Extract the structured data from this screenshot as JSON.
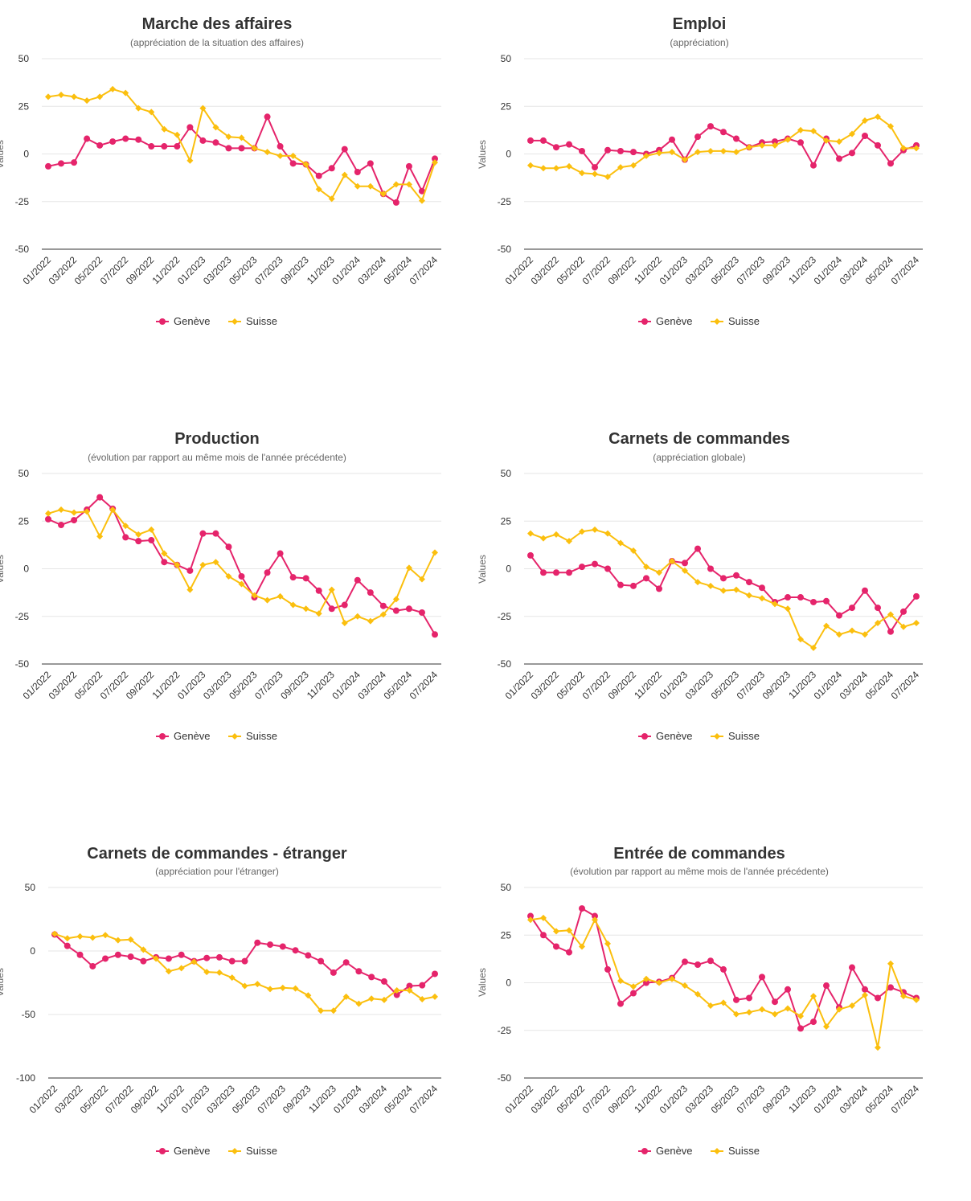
{
  "colors": {
    "geneve": "#E5246B",
    "suisse": "#FBBF0E",
    "grid": "#E6E6E6",
    "axis": "#333333"
  },
  "x_labels": [
    "01/2022",
    "03/2022",
    "05/2022",
    "07/2022",
    "09/2022",
    "11/2022",
    "01/2023",
    "03/2023",
    "05/2023",
    "07/2023",
    "09/2023",
    "11/2023",
    "01/2024",
    "03/2024",
    "05/2024",
    "07/2024"
  ],
  "chart_data": [
    {
      "type": "line",
      "title": "Marche des affaires",
      "subtitle": "(appréciation de la situation des affaires)",
      "ylabel": "Values",
      "ylim": [
        -50,
        50
      ],
      "yticks": [
        -50,
        -25,
        0,
        25,
        50
      ],
      "grid": true,
      "legend": "bottom",
      "series": [
        {
          "name": "Genève",
          "color": "#E5246B",
          "marker": "circle",
          "values": [
            -6.5,
            -5,
            -4.5,
            8,
            4.5,
            6.5,
            8,
            7.5,
            4,
            4,
            4,
            14,
            7,
            6,
            3,
            3,
            3,
            19.5,
            4,
            -5,
            -5.5,
            -11.5,
            -7.5,
            2.5,
            -9.5,
            -5,
            -21,
            -25.5,
            -6.5,
            -19.5,
            -2.5
          ]
        },
        {
          "name": "Suisse",
          "color": "#FBBF0E",
          "marker": "diamond",
          "values": [
            30,
            31,
            30,
            28,
            30,
            34,
            32,
            24,
            22,
            13,
            10,
            -3.5,
            24,
            14,
            9,
            8.5,
            3,
            1,
            -1,
            -1,
            -5.5,
            -18.5,
            -23.5,
            -11,
            -17,
            -17,
            -21,
            -16,
            -16,
            -24.5,
            -4.5
          ]
        }
      ]
    },
    {
      "type": "line",
      "title": "Emploi",
      "subtitle": "(appréciation)",
      "ylabel": "Values",
      "ylim": [
        -50,
        50
      ],
      "yticks": [
        -50,
        -25,
        0,
        25,
        50
      ],
      "grid": true,
      "legend": "bottom",
      "series": [
        {
          "name": "Genève",
          "color": "#E5246B",
          "marker": "circle",
          "values": [
            7,
            7,
            3.5,
            5,
            1.5,
            -7,
            2,
            1.5,
            1,
            0,
            2,
            7.5,
            -3,
            9,
            14.5,
            11.5,
            8,
            3.5,
            6,
            6.5,
            8,
            6,
            -6,
            8,
            -2.5,
            0.5,
            9.5,
            4.5,
            -5,
            2,
            4.5
          ]
        },
        {
          "name": "Suisse",
          "color": "#FBBF0E",
          "marker": "diamond",
          "values": [
            -6,
            -7.5,
            -7.5,
            -6.5,
            -10,
            -10.5,
            -12,
            -7,
            -6,
            -1,
            0.5,
            1,
            -3,
            1,
            1.5,
            1.5,
            1,
            3.5,
            4.5,
            4.5,
            7.5,
            12.5,
            12,
            7,
            6.5,
            10.5,
            17.5,
            19.5,
            14.5,
            3,
            3
          ]
        }
      ]
    },
    {
      "type": "line",
      "title": "Production",
      "subtitle": "(évolution par rapport au même mois de l'année précédente)",
      "ylabel": "Values",
      "ylim": [
        -50,
        50
      ],
      "yticks": [
        -50,
        -25,
        0,
        25,
        50
      ],
      "grid": true,
      "legend": "bottom",
      "series": [
        {
          "name": "Genève",
          "color": "#E5246B",
          "marker": "circle",
          "values": [
            26,
            23,
            25.5,
            31,
            37.5,
            31.5,
            16.5,
            14.5,
            15,
            3.5,
            2,
            -1,
            18.5,
            18.5,
            11.5,
            -4,
            -15,
            -2,
            8,
            -4.5,
            -5,
            -11.5,
            -21,
            -19,
            -6,
            -12.5,
            -19.5,
            -22,
            -21,
            -23,
            -34.5
          ]
        },
        {
          "name": "Suisse",
          "color": "#FBBF0E",
          "marker": "diamond",
          "values": [
            29,
            31,
            29.5,
            30,
            17,
            31,
            22.5,
            18,
            20.5,
            8,
            2,
            -11,
            2,
            3.5,
            -4,
            -8,
            -14,
            -16.5,
            -14.5,
            -19,
            -21,
            -23.5,
            -11,
            -28.5,
            -25,
            -27.5,
            -24,
            -16,
            0.5,
            -5.5,
            8.5
          ]
        }
      ]
    },
    {
      "type": "line",
      "title": "Carnets de commandes",
      "subtitle": "(appréciation globale)",
      "ylabel": "Values",
      "ylim": [
        -50,
        50
      ],
      "yticks": [
        -50,
        -25,
        0,
        25,
        50
      ],
      "grid": true,
      "legend": "bottom",
      "series": [
        {
          "name": "Genève",
          "color": "#E5246B",
          "marker": "circle",
          "values": [
            7,
            -2,
            -2,
            -2,
            1,
            2.5,
            0,
            -8.5,
            -9,
            -5,
            -10.5,
            4,
            3,
            10.5,
            0,
            -5,
            -3.5,
            -7,
            -10,
            -17.5,
            -15,
            -15,
            -17.5,
            -17,
            -24.5,
            -20.5,
            -11.5,
            -20.5,
            -33,
            -22.5,
            -14.5
          ]
        },
        {
          "name": "Suisse",
          "color": "#FBBF0E",
          "marker": "diamond",
          "values": [
            18.5,
            16,
            18,
            14.5,
            19.5,
            20.5,
            18.5,
            13.5,
            9.5,
            1,
            -2,
            4,
            -1,
            -7,
            -9,
            -11.5,
            -11,
            -14,
            -15.5,
            -18.5,
            -21,
            -37,
            -41.5,
            -30,
            -34.5,
            -32.5,
            -34.5,
            -28.5,
            -24,
            -30.5,
            -28.5
          ]
        }
      ]
    },
    {
      "type": "line",
      "title": "Carnets de commandes - étranger",
      "subtitle": "(appréciation pour l'étranger)",
      "ylabel": "Values",
      "ylim": [
        -100,
        50
      ],
      "yticks": [
        -100,
        -50,
        0,
        50
      ],
      "grid": true,
      "legend": "bottom",
      "series": [
        {
          "name": "Genève",
          "color": "#E5246B",
          "marker": "circle",
          "values": [
            13,
            4,
            -3,
            -12,
            -6,
            -3,
            -4.5,
            -8,
            -5,
            -6,
            -3,
            -8,
            -5.5,
            -5,
            -8,
            -8,
            6.5,
            5,
            3.5,
            0.5,
            -3.5,
            -8,
            -17,
            -9,
            -16,
            -20.5,
            -24,
            -34.5,
            -27.5,
            -27,
            -18
          ]
        },
        {
          "name": "Suisse",
          "color": "#FBBF0E",
          "marker": "diamond",
          "values": [
            13.5,
            10,
            11.5,
            10.5,
            12.5,
            8.5,
            9,
            1,
            -6,
            -16,
            -13.5,
            -8.5,
            -16.5,
            -17,
            -21,
            -27.5,
            -26,
            -30,
            -29,
            -29.5,
            -35,
            -47,
            -47,
            -36,
            -41.5,
            -37.5,
            -38.5,
            -31,
            -31,
            -38,
            -36
          ]
        }
      ]
    },
    {
      "type": "line",
      "title": "Entrée de commandes",
      "subtitle": "(évolution par rapport au même mois de l'année précédente)",
      "ylabel": "Values",
      "ylim": [
        -50,
        50
      ],
      "yticks": [
        -50,
        -25,
        0,
        25,
        50
      ],
      "grid": true,
      "legend": "bottom",
      "series": [
        {
          "name": "Genève",
          "color": "#E5246B",
          "marker": "circle",
          "values": [
            35,
            25,
            19,
            16,
            39,
            35,
            7,
            -11,
            -5.5,
            0,
            0.5,
            2.5,
            11,
            9.5,
            11.5,
            7,
            -9,
            -8,
            3,
            -10,
            -3.5,
            -24,
            -20.5,
            -1.5,
            -13,
            8,
            -3.5,
            -8,
            -2.5,
            -5,
            -8
          ]
        },
        {
          "name": "Suisse",
          "color": "#FBBF0E",
          "marker": "diamond",
          "values": [
            33,
            34,
            27,
            27.5,
            19,
            33,
            20.5,
            1,
            -2,
            2,
            0,
            2,
            -1.5,
            -6,
            -12,
            -10.5,
            -16.5,
            -15.5,
            -14,
            -16.5,
            -13.5,
            -17.5,
            -7,
            -23,
            -14,
            -12,
            -6.5,
            -34,
            10,
            -7,
            -9
          ]
        }
      ]
    }
  ]
}
